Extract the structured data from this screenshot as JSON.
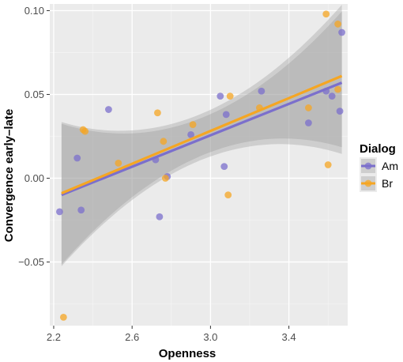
{
  "chart_data": {
    "type": "scatter",
    "xlabel": "Openness",
    "ylabel": "Convergence early–late",
    "xlim": [
      2.18,
      3.7
    ],
    "ylim": [
      -0.088,
      0.104
    ],
    "x_ticks": [
      2.2,
      2.6,
      3.0,
      3.4
    ],
    "x_tick_labels": [
      "2.2",
      "2.6",
      "3.0",
      "3.4"
    ],
    "y_ticks": [
      -0.05,
      0.0,
      0.05,
      0.1
    ],
    "y_tick_labels": [
      "−0.05",
      "0.00",
      "0.05",
      "0.10"
    ],
    "grid": true,
    "legend": {
      "title": "Dialog",
      "position": "right"
    },
    "series": [
      {
        "name": "Am",
        "color": "#7b6fcc",
        "points": [
          [
            2.23,
            -0.02
          ],
          [
            2.32,
            0.012
          ],
          [
            2.34,
            -0.019
          ],
          [
            2.48,
            0.041
          ],
          [
            2.72,
            0.011
          ],
          [
            2.74,
            -0.023
          ],
          [
            2.78,
            0.001
          ],
          [
            2.9,
            0.026
          ],
          [
            3.05,
            0.049
          ],
          [
            3.07,
            0.007
          ],
          [
            3.08,
            0.038
          ],
          [
            3.26,
            0.052
          ],
          [
            3.5,
            0.033
          ],
          [
            3.59,
            0.052
          ],
          [
            3.62,
            0.049
          ],
          [
            3.66,
            0.04
          ],
          [
            3.67,
            0.087
          ]
        ],
        "fit": {
          "x": [
            2.24,
            3.67
          ],
          "y": [
            -0.01,
            0.057
          ]
        }
      },
      {
        "name": "Br",
        "color": "#f5a623",
        "points": [
          [
            2.25,
            -0.083
          ],
          [
            2.35,
            0.029
          ],
          [
            2.36,
            0.028
          ],
          [
            2.53,
            0.009
          ],
          [
            2.73,
            0.039
          ],
          [
            2.76,
            0.022
          ],
          [
            2.77,
            0.0
          ],
          [
            2.91,
            0.032
          ],
          [
            3.09,
            -0.01
          ],
          [
            3.1,
            0.049
          ],
          [
            3.25,
            0.042
          ],
          [
            3.5,
            0.042
          ],
          [
            3.59,
            0.098
          ],
          [
            3.6,
            0.008
          ],
          [
            3.65,
            0.092
          ],
          [
            3.65,
            0.053
          ]
        ],
        "fit": {
          "x": [
            2.24,
            3.67
          ],
          "y": [
            -0.009,
            0.061
          ]
        }
      }
    ]
  }
}
